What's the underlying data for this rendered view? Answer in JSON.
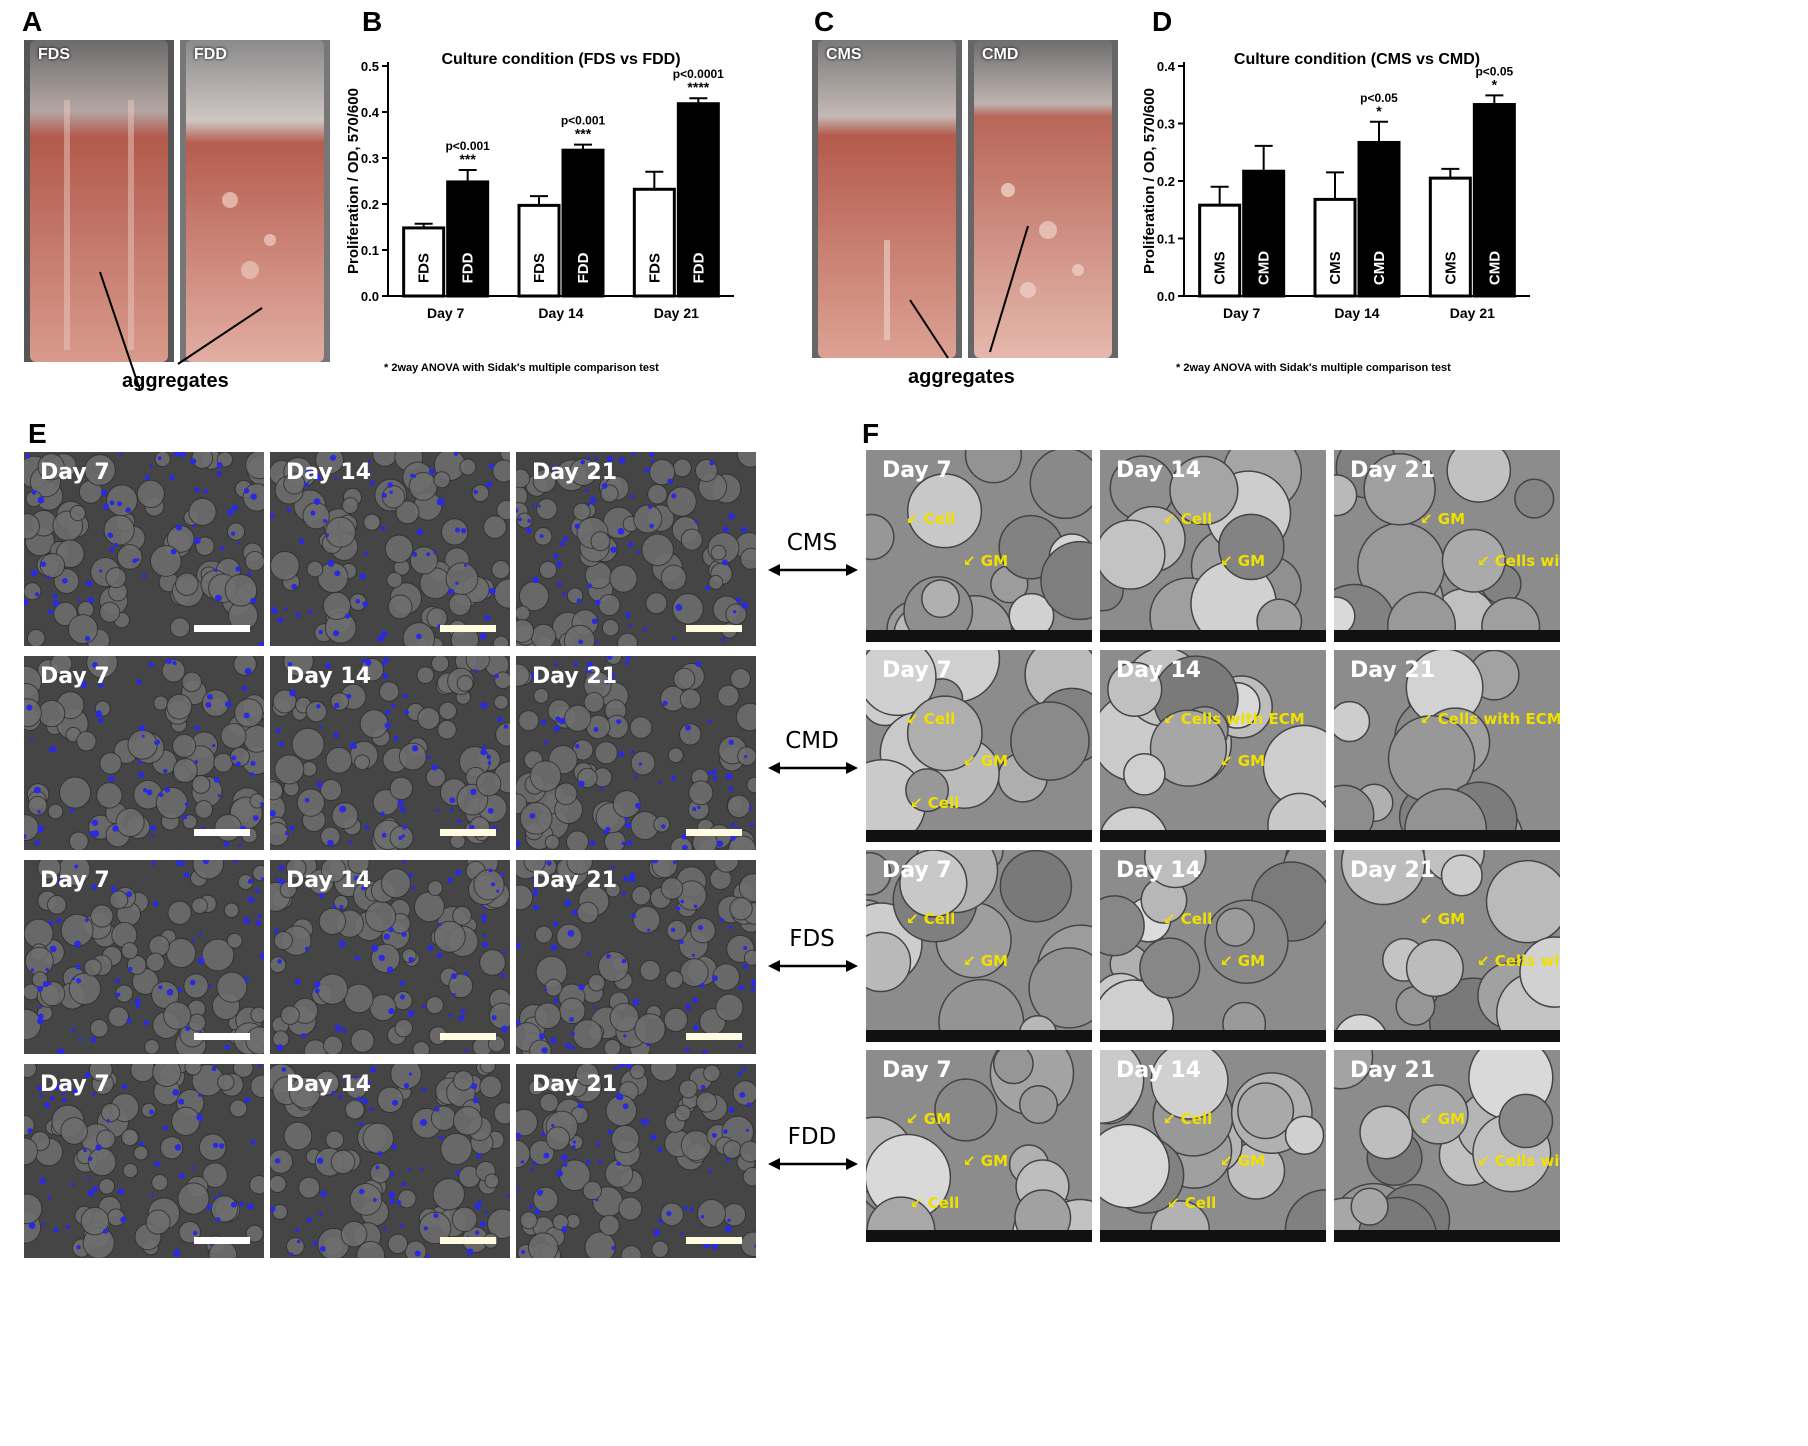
{
  "panels": {
    "A": {
      "letter": "A",
      "photo_labels": [
        "FDS",
        "FDD"
      ],
      "caption": "aggregates"
    },
    "C": {
      "letter": "C",
      "photo_labels": [
        "CMS",
        "CMD"
      ],
      "caption": "aggregates"
    },
    "B": {
      "letter": "B",
      "footnote": "* 2way ANOVA with Sidak's multiple comparison test"
    },
    "D": {
      "letter": "D",
      "footnote": "* 2way ANOVA with Sidak's multiple comparison test"
    },
    "E": {
      "letter": "E",
      "rows": [
        [
          "Day 7",
          "Day 14",
          "Day 21"
        ],
        [
          "Day 7",
          "Day 14",
          "Day 21"
        ],
        [
          "Day 7",
          "Day 14",
          "Day 21"
        ],
        [
          "Day 7",
          "Day 14",
          "Day 21"
        ]
      ]
    },
    "F": {
      "letter": "F",
      "rows": [
        [
          "Day 7",
          "Day 14",
          "Day 21"
        ],
        [
          "Day 7",
          "Day 14",
          "Day 21"
        ],
        [
          "Day 7",
          "Day 14",
          "Day 21"
        ],
        [
          "Day 7",
          "Day 14",
          "Day 21"
        ]
      ],
      "annotations": [
        [
          [
            "Cell",
            "GM"
          ],
          [
            "Cell",
            "GM"
          ],
          [
            "GM",
            "Cells with ECM"
          ]
        ],
        [
          [
            "Cell",
            "GM",
            "Cell"
          ],
          [
            "Cells with ECM",
            "GM"
          ],
          [
            "Cells with ECM"
          ]
        ],
        [
          [
            "Cell",
            "GM"
          ],
          [
            "Cell",
            "GM"
          ],
          [
            "GM",
            "Cells with ECM"
          ]
        ],
        [
          [
            "GM",
            "GM",
            "Cell"
          ],
          [
            "Cell",
            "GM",
            "Cell"
          ],
          [
            "GM",
            "Cells with ECM"
          ]
        ]
      ]
    }
  },
  "conditions": [
    "CMS",
    "CMD",
    "FDS",
    "FDD"
  ],
  "colors": {
    "fluorescence_bg": "#454545",
    "nuclei": "#2a2ae0",
    "sem_bg": "#8c8c8c",
    "annotation": "#f0e000",
    "medium": "#c98a7e"
  },
  "chart_data": [
    {
      "type": "bar",
      "title": "Culture condition (FDS vs FDD)",
      "ylabel": "Proliferation / OD, 570/600",
      "categories": [
        "Day 7",
        "Day 14",
        "Day 21"
      ],
      "ylim": [
        0,
        0.5
      ],
      "yticks": [
        "0.0",
        "0.1",
        "0.2",
        "0.3",
        "0.4",
        "0.5"
      ],
      "series": [
        {
          "name": "FDS",
          "fill": "white",
          "values": [
            0.148,
            0.197,
            0.232
          ],
          "errors": [
            0.009,
            0.02,
            0.038
          ]
        },
        {
          "name": "FDD",
          "fill": "black",
          "values": [
            0.248,
            0.317,
            0.418
          ],
          "errors": [
            0.026,
            0.012,
            0.012
          ]
        }
      ],
      "annotations": [
        {
          "p": "p<0.001",
          "stars": "***"
        },
        {
          "p": "p<0.001",
          "stars": "***"
        },
        {
          "p": "p<0.0001",
          "stars": "****"
        }
      ]
    },
    {
      "type": "bar",
      "title": "Culture condition (CMS vs CMD)",
      "ylabel": "Proliferation / OD, 570/600",
      "categories": [
        "Day 7",
        "Day 14",
        "Day 21"
      ],
      "ylim": [
        0,
        0.4
      ],
      "yticks": [
        "0.0",
        "0.1",
        "0.2",
        "0.3",
        "0.4"
      ],
      "series": [
        {
          "name": "CMS",
          "fill": "white",
          "values": [
            0.158,
            0.168,
            0.205
          ],
          "errors": [
            0.032,
            0.047,
            0.016
          ]
        },
        {
          "name": "CMD",
          "fill": "black",
          "values": [
            0.217,
            0.267,
            0.333
          ],
          "errors": [
            0.044,
            0.036,
            0.016
          ]
        }
      ],
      "annotations": [
        {
          "p": "",
          "stars": ""
        },
        {
          "p": "p<0.05",
          "stars": "*"
        },
        {
          "p": "p<0.05",
          "stars": "*"
        }
      ]
    }
  ]
}
